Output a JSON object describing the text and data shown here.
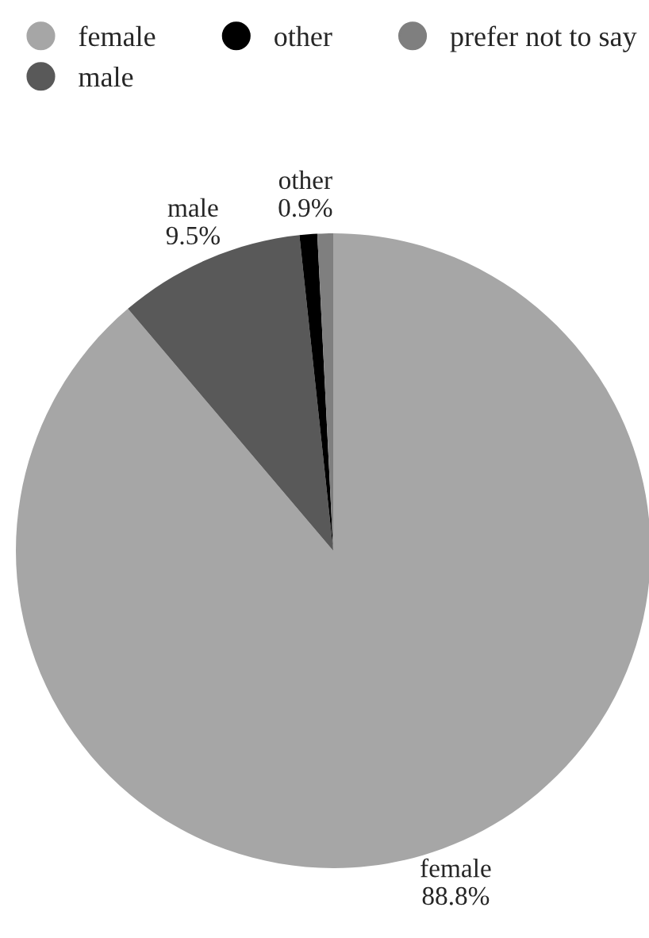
{
  "chart_data": {
    "type": "pie",
    "categories": [
      "female",
      "male",
      "other",
      "prefer not to say"
    ],
    "values": [
      88.8,
      9.5,
      0.9,
      0.8
    ],
    "value_labels": [
      "88.8%",
      "9.5%",
      "0.9%",
      null
    ],
    "colors": [
      "#a6a6a6",
      "#595959",
      "#000000",
      "#7f7f7f"
    ],
    "legend": "top"
  }
}
